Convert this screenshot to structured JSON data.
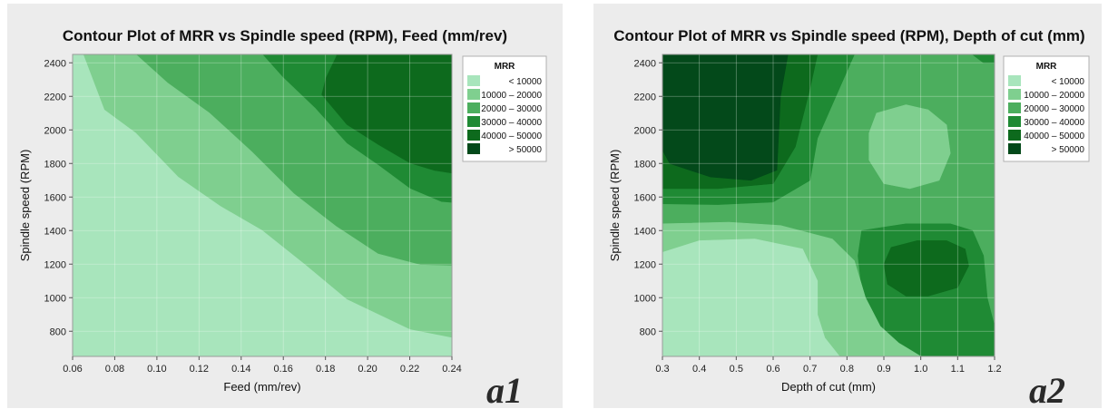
{
  "panels": [
    {
      "id": "a1",
      "tag": "a1",
      "chart_data": {
        "type": "contour",
        "title": "Contour Plot of MRR vs Spindle speed (RPM), Feed (mm/rev)",
        "xlabel": "Feed (mm/rev)",
        "ylabel": "Spindle speed (RPM)",
        "xlim": [
          0.06,
          0.24
        ],
        "ylim": [
          650,
          2450
        ],
        "x_ticks": [
          "0.06",
          "0.08",
          "0.10",
          "0.12",
          "0.14",
          "0.16",
          "0.18",
          "0.20",
          "0.22",
          "0.24"
        ],
        "y_ticks": [
          "800",
          "1000",
          "1200",
          "1400",
          "1600",
          "1800",
          "2000",
          "2200",
          "2400"
        ],
        "grid": true,
        "legend": {
          "title": "MRR",
          "placement": "top-right",
          "levels": [
            {
              "label": "<  10000",
              "color": "#a8e5bc"
            },
            {
              "label": "10000  –  20000",
              "color": "#7fcf8f"
            },
            {
              "label": "20000  –  30000",
              "color": "#4cae5e"
            },
            {
              "label": "30000  –  40000",
              "color": "#1f8a34"
            },
            {
              "label": "40000  –  50000",
              "color": "#0d6a1d"
            },
            {
              "label": ">  50000",
              "color": "#03491a"
            }
          ]
        },
        "regions": [
          {
            "level": 1,
            "points": [
              [
                0.065,
                2450
              ],
              [
                0.075,
                2120
              ],
              [
                0.09,
                1980
              ],
              [
                0.11,
                1720
              ],
              [
                0.13,
                1545
              ],
              [
                0.15,
                1400
              ],
              [
                0.17,
                1200
              ],
              [
                0.19,
                990
              ],
              [
                0.22,
                810
              ],
              [
                0.24,
                760
              ],
              [
                0.24,
                650
              ],
              [
                0.06,
                650
              ],
              [
                0.06,
                2450
              ]
            ]
          },
          {
            "level": 2,
            "points": [
              [
                0.09,
                2450
              ],
              [
                0.105,
                2280
              ],
              [
                0.125,
                2100
              ],
              [
                0.145,
                1870
              ],
              [
                0.165,
                1620
              ],
              [
                0.185,
                1425
              ],
              [
                0.205,
                1260
              ],
              [
                0.225,
                1195
              ],
              [
                0.24,
                1190
              ],
              [
                0.24,
                650
              ],
              [
                0.06,
                650
              ],
              [
                0.06,
                2450
              ]
            ]
          },
          {
            "level": 3,
            "points": [
              [
                0.12,
                2450
              ],
              [
                0.15,
                2450
              ],
              [
                0.16,
                2310
              ],
              [
                0.175,
                2130
              ],
              [
                0.19,
                1920
              ],
              [
                0.205,
                1790
              ],
              [
                0.22,
                1650
              ],
              [
                0.235,
                1570
              ],
              [
                0.24,
                1565
              ],
              [
                0.24,
                650
              ],
              [
                0.06,
                650
              ],
              [
                0.06,
                2450
              ]
            ]
          },
          {
            "level": 4,
            "points": [
              [
                0.185,
                2450
              ],
              [
                0.185,
                2440
              ],
              [
                0.18,
                2310
              ],
              [
                0.178,
                2210
              ],
              [
                0.19,
                2030
              ],
              [
                0.205,
                1910
              ],
              [
                0.22,
                1800
              ],
              [
                0.232,
                1755
              ],
              [
                0.24,
                1740
              ],
              [
                0.24,
                650
              ],
              [
                0.06,
                650
              ],
              [
                0.06,
                2450
              ]
            ]
          },
          {
            "level": 5,
            "points": [
              [
                0.06,
                2450
              ],
              [
                0.135,
                2450
              ],
              [
                0.14,
                2410
              ],
              [
                0.165,
                2400
              ],
              [
                0.17,
                2450
              ],
              [
                0.24,
                2450
              ],
              [
                0.24,
                650
              ],
              [
                0.06,
                650
              ]
            ]
          }
        ],
        "base_level": 0,
        "regions_descend": true
      }
    },
    {
      "id": "a2",
      "tag": "a2",
      "chart_data": {
        "type": "contour",
        "title": "Contour Plot of MRR vs Spindle speed (RPM), Depth of cut (mm)",
        "xlabel": "Depth of cut (mm)",
        "ylabel": "Spindle speed (RPM)",
        "xlim": [
          0.3,
          1.2
        ],
        "ylim": [
          650,
          2450
        ],
        "x_ticks": [
          "0.3",
          "0.4",
          "0.5",
          "0.6",
          "0.7",
          "0.8",
          "0.9",
          "1.0",
          "1.1",
          "1.2"
        ],
        "y_ticks": [
          "800",
          "1000",
          "1200",
          "1400",
          "1600",
          "1800",
          "2000",
          "2200",
          "2400"
        ],
        "grid": true,
        "legend": {
          "title": "MRR",
          "placement": "top-right",
          "levels": [
            {
              "label": "<  10000",
              "color": "#a8e5bc"
            },
            {
              "label": "10000  –  20000",
              "color": "#7fcf8f"
            },
            {
              "label": "20000  –  30000",
              "color": "#4cae5e"
            },
            {
              "label": "30000  –  40000",
              "color": "#1f8a34"
            },
            {
              "label": "40000  –  50000",
              "color": "#0d6a1d"
            },
            {
              "label": ">  50000",
              "color": "#03491a"
            }
          ]
        },
        "layers": [
          {
            "level": 2,
            "points": [
              [
                0.3,
                2450
              ],
              [
                1.2,
                2450
              ],
              [
                1.2,
                650
              ],
              [
                0.3,
                650
              ]
            ]
          },
          {
            "level": 3,
            "points": [
              [
                0.3,
                2450
              ],
              [
                0.82,
                2450
              ],
              [
                0.78,
                2250
              ],
              [
                0.72,
                1950
              ],
              [
                0.7,
                1700
              ],
              [
                0.6,
                1570
              ],
              [
                0.45,
                1555
              ],
              [
                0.3,
                1560
              ]
            ]
          },
          {
            "level": 3,
            "points": [
              [
                1.2,
                2450
              ],
              [
                1.2,
                2400
              ],
              [
                1.17,
                2400
              ],
              [
                1.14,
                2450
              ]
            ]
          },
          {
            "level": 3,
            "points": [
              [
                0.84,
                1400
              ],
              [
                0.96,
                1440
              ],
              [
                1.08,
                1440
              ],
              [
                1.14,
                1400
              ],
              [
                1.17,
                1250
              ],
              [
                1.18,
                1000
              ],
              [
                1.2,
                830
              ],
              [
                1.2,
                650
              ],
              [
                1.0,
                650
              ],
              [
                0.94,
                700
              ],
              [
                0.88,
                850
              ],
              [
                0.84,
                1050
              ],
              [
                0.83,
                1250
              ]
            ]
          },
          {
            "level": 4,
            "points": [
              [
                0.3,
                2450
              ],
              [
                0.72,
                2450
              ],
              [
                0.7,
                2250
              ],
              [
                0.66,
                1900
              ],
              [
                0.6,
                1680
              ],
              [
                0.45,
                1650
              ],
              [
                0.3,
                1650
              ]
            ]
          },
          {
            "level": 4,
            "points": [
              [
                0.92,
                1300
              ],
              [
                0.99,
                1340
              ],
              [
                1.07,
                1340
              ],
              [
                1.12,
                1290
              ],
              [
                1.13,
                1190
              ],
              [
                1.1,
                1060
              ],
              [
                1.02,
                1010
              ],
              [
                0.96,
                1010
              ],
              [
                0.91,
                1080
              ],
              [
                0.9,
                1200
              ]
            ]
          },
          {
            "level": 5,
            "points": [
              [
                0.3,
                2450
              ],
              [
                0.64,
                2450
              ],
              [
                0.62,
                2200
              ],
              [
                0.61,
                1760
              ],
              [
                0.54,
                1700
              ],
              [
                0.43,
                1720
              ],
              [
                0.32,
                1800
              ],
              [
                0.3,
                1880
              ]
            ]
          },
          {
            "level": 2,
            "points": [
              [
                0.3,
                1440
              ],
              [
                0.48,
                1450
              ],
              [
                0.62,
                1430
              ],
              [
                0.76,
                1350
              ],
              [
                0.82,
                1220
              ],
              [
                0.85,
                1000
              ],
              [
                0.89,
                830
              ],
              [
                0.94,
                730
              ],
              [
                1.0,
                650
              ],
              [
                0.3,
                650
              ]
            ]
          },
          {
            "level": 1,
            "points": [
              [
                0.3,
                1440
              ],
              [
                0.48,
                1450
              ],
              [
                0.62,
                1430
              ],
              [
                0.76,
                1350
              ],
              [
                0.82,
                1220
              ],
              [
                0.85,
                1000
              ],
              [
                0.89,
                830
              ],
              [
                0.94,
                730
              ],
              [
                1.0,
                650
              ],
              [
                0.3,
                650
              ]
            ]
          },
          {
            "level": 0,
            "points": [
              [
                0.3,
                1270
              ],
              [
                0.4,
                1340
              ],
              [
                0.55,
                1350
              ],
              [
                0.68,
                1290
              ],
              [
                0.72,
                1100
              ],
              [
                0.72,
                900
              ],
              [
                0.74,
                760
              ],
              [
                0.78,
                650
              ],
              [
                0.3,
                650
              ]
            ]
          },
          {
            "level": 1,
            "points": [
              [
                0.88,
                2100
              ],
              [
                0.96,
                2150
              ],
              [
                1.02,
                2120
              ],
              [
                1.07,
                2030
              ],
              [
                1.08,
                1860
              ],
              [
                1.05,
                1700
              ],
              [
                0.97,
                1650
              ],
              [
                0.9,
                1680
              ],
              [
                0.86,
                1820
              ],
              [
                0.86,
                1980
              ]
            ]
          }
        ]
      }
    }
  ]
}
